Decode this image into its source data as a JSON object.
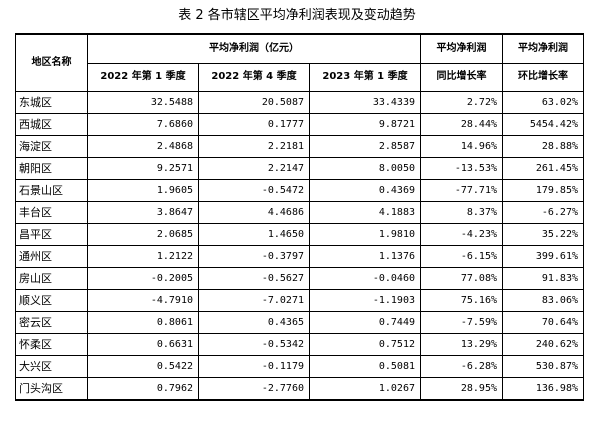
{
  "caption": "表 2 各市辖区平均净利润表现及变动趋势",
  "table": {
    "header": {
      "region": "地区名称",
      "profit_group": "平均净利润（亿元）",
      "yoy_top": "平均净利润",
      "yoy_bottom": "同比增长率",
      "qoq_top": "平均净利润",
      "qoq_bottom": "环比增长率",
      "periods": [
        "2022 年第 1 季度",
        "2022 年第 4 季度",
        "2023 年第 1 季度"
      ]
    },
    "rows": [
      {
        "name": "东城区",
        "q1_2022": "32.5488",
        "q4_2022": "20.5087",
        "q1_2023": "33.4339",
        "yoy": "2.72%",
        "qoq": "63.02%"
      },
      {
        "name": "西城区",
        "q1_2022": "7.6860",
        "q4_2022": "0.1777",
        "q1_2023": "9.8721",
        "yoy": "28.44%",
        "qoq": "5454.42%"
      },
      {
        "name": "海淀区",
        "q1_2022": "2.4868",
        "q4_2022": "2.2181",
        "q1_2023": "2.8587",
        "yoy": "14.96%",
        "qoq": "28.88%"
      },
      {
        "name": "朝阳区",
        "q1_2022": "9.2571",
        "q4_2022": "2.2147",
        "q1_2023": "8.0050",
        "yoy": "-13.53%",
        "qoq": "261.45%"
      },
      {
        "name": "石景山区",
        "q1_2022": "1.9605",
        "q4_2022": "-0.5472",
        "q1_2023": "0.4369",
        "yoy": "-77.71%",
        "qoq": "179.85%"
      },
      {
        "name": "丰台区",
        "q1_2022": "3.8647",
        "q4_2022": "4.4686",
        "q1_2023": "4.1883",
        "yoy": "8.37%",
        "qoq": "-6.27%"
      },
      {
        "name": "昌平区",
        "q1_2022": "2.0685",
        "q4_2022": "1.4650",
        "q1_2023": "1.9810",
        "yoy": "-4.23%",
        "qoq": "35.22%"
      },
      {
        "name": "通州区",
        "q1_2022": "1.2122",
        "q4_2022": "-0.3797",
        "q1_2023": "1.1376",
        "yoy": "-6.15%",
        "qoq": "399.61%"
      },
      {
        "name": "房山区",
        "q1_2022": "-0.2005",
        "q4_2022": "-0.5627",
        "q1_2023": "-0.0460",
        "yoy": "77.08%",
        "qoq": "91.83%"
      },
      {
        "name": "顺义区",
        "q1_2022": "-4.7910",
        "q4_2022": "-7.0271",
        "q1_2023": "-1.1903",
        "yoy": "75.16%",
        "qoq": "83.06%"
      },
      {
        "name": "密云区",
        "q1_2022": "0.8061",
        "q4_2022": "0.4365",
        "q1_2023": "0.7449",
        "yoy": "-7.59%",
        "qoq": "70.64%"
      },
      {
        "name": "怀柔区",
        "q1_2022": "0.6631",
        "q4_2022": "-0.5342",
        "q1_2023": "0.7512",
        "yoy": "13.29%",
        "qoq": "240.62%"
      },
      {
        "name": "大兴区",
        "q1_2022": "0.5422",
        "q4_2022": "-0.1179",
        "q1_2023": "0.5081",
        "yoy": "-6.28%",
        "qoq": "530.87%"
      },
      {
        "name": "门头沟区",
        "q1_2022": "0.7962",
        "q4_2022": "-2.7760",
        "q1_2023": "1.0267",
        "yoy": "28.95%",
        "qoq": "136.98%"
      }
    ]
  }
}
